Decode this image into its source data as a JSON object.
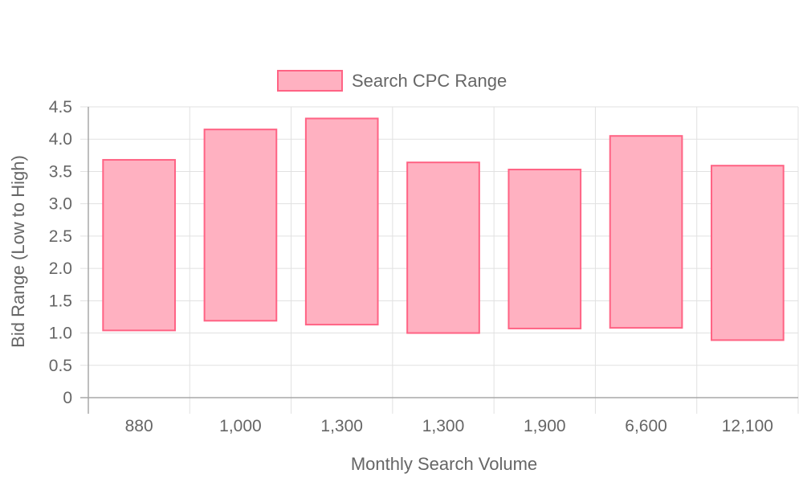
{
  "chart_data": {
    "type": "bar",
    "subtype": "floating-range",
    "xlabel": "Monthly Search Volume",
    "ylabel": "Bid Range (Low to High)",
    "categories": [
      "880",
      "1,000",
      "1,300",
      "1,300",
      "1,900",
      "6,600",
      "12,100"
    ],
    "series": [
      {
        "name": "Search CPC Range",
        "ranges": [
          [
            1.04,
            3.68
          ],
          [
            1.19,
            4.15
          ],
          [
            1.13,
            4.32
          ],
          [
            1.0,
            3.64
          ],
          [
            1.07,
            3.53
          ],
          [
            1.08,
            4.05
          ],
          [
            0.89,
            3.59
          ]
        ]
      }
    ],
    "ylim": [
      0,
      4.5
    ],
    "yticks": [
      "0",
      "0.5",
      "1.0",
      "1.5",
      "2.0",
      "2.5",
      "3.0",
      "3.5",
      "4.0",
      "4.5"
    ],
    "grid": true,
    "legend": "top-center",
    "colors": {
      "fill": "#ffb1c1",
      "border": "#ff6384",
      "grid": "#e1e1e1",
      "text": "#666666"
    }
  }
}
